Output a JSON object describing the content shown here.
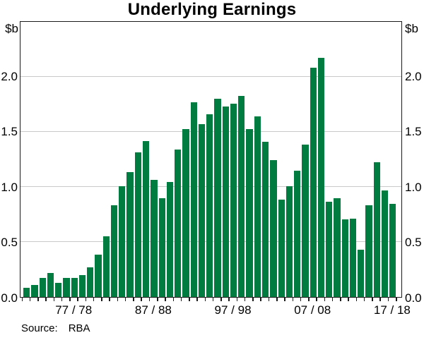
{
  "title": "Underlying Earnings",
  "unit_label_left": "$b",
  "unit_label_right": "$b",
  "source": {
    "label": "Source:",
    "value": "RBA"
  },
  "colors": {
    "bar": "#007C41",
    "grid": "#c9c9c9",
    "frame": "#1a1a1a",
    "background": "#ffffff"
  },
  "chart_data": {
    "type": "bar",
    "title": "Underlying Earnings",
    "ylabel": "$b",
    "ylim": [
      0,
      2.5
    ],
    "grid": true,
    "yticks": [
      0,
      0.5,
      1.0,
      1.5,
      2.0
    ],
    "ytick_labels": [
      "0.0",
      "0.5",
      "1.0",
      "1.5",
      "2.0"
    ],
    "xtick_labels": [
      "77 / 78",
      "87 / 88",
      "97 / 98",
      "07 / 08",
      "17 / 18"
    ],
    "xtick_indices": [
      6,
      16,
      26,
      36,
      46
    ],
    "categories": [
      "71/72",
      "72/73",
      "73/74",
      "74/75",
      "75/76",
      "76/77",
      "77/78",
      "78/79",
      "79/80",
      "80/81",
      "81/82",
      "82/83",
      "83/84",
      "84/85",
      "85/86",
      "86/87",
      "87/88",
      "88/89",
      "89/90",
      "90/91",
      "91/92",
      "92/93",
      "93/94",
      "94/95",
      "95/96",
      "96/97",
      "97/98",
      "98/99",
      "99/00",
      "00/01",
      "01/02",
      "02/03",
      "03/04",
      "04/05",
      "05/06",
      "06/07",
      "07/08",
      "08/09",
      "09/10",
      "10/11",
      "11/12",
      "12/13",
      "13/14",
      "14/15",
      "15/16",
      "16/17",
      "17/18"
    ],
    "values": [
      0.08,
      0.11,
      0.17,
      0.22,
      0.13,
      0.17,
      0.17,
      0.2,
      0.27,
      0.38,
      0.55,
      0.83,
      1.0,
      1.13,
      1.31,
      1.41,
      1.06,
      0.89,
      1.04,
      1.33,
      1.52,
      1.76,
      1.56,
      1.65,
      1.79,
      1.72,
      1.75,
      1.82,
      1.52,
      1.63,
      1.4,
      1.24,
      0.88,
      1.0,
      1.14,
      1.38,
      2.07,
      2.16,
      0.86,
      0.89,
      0.7,
      0.71,
      0.43,
      0.83,
      1.22,
      0.96,
      0.84
    ]
  }
}
